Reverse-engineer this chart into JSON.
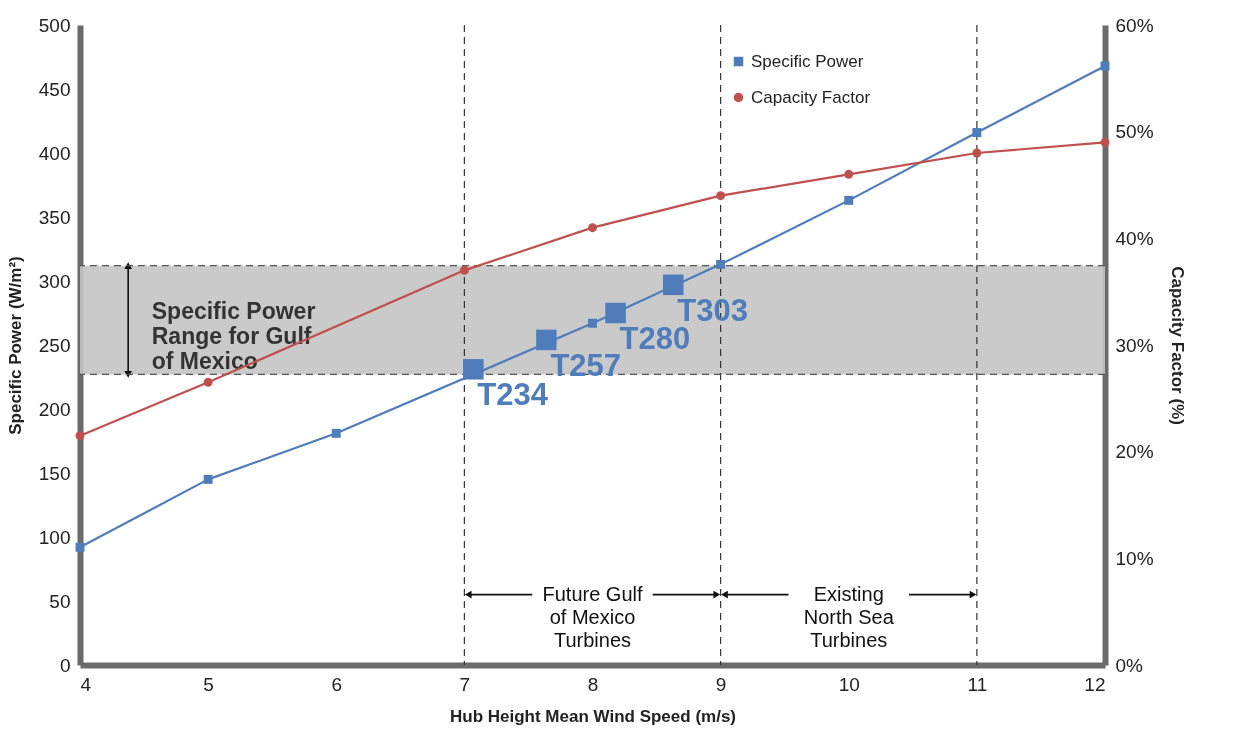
{
  "chart_data": {
    "type": "line",
    "xlabel": "Hub Height Mean Wind Speed (m/s)",
    "ylabel": "Specific Power (W/m²)",
    "y2label": "Capacity Factor (%)",
    "xlim": [
      4,
      12
    ],
    "xticks": [
      4,
      5,
      6,
      7,
      8,
      9,
      10,
      11,
      12
    ],
    "ylim": [
      0,
      500
    ],
    "yticks": [
      0,
      50,
      100,
      150,
      200,
      250,
      300,
      350,
      400,
      450,
      500
    ],
    "y2lim": [
      0,
      60
    ],
    "y2ticks": [
      {
        "value": 0,
        "label": "0%"
      },
      {
        "value": 10,
        "label": "10%"
      },
      {
        "value": 20,
        "label": "20%"
      },
      {
        "value": 30,
        "label": "30%"
      },
      {
        "value": 40,
        "label": "40%"
      },
      {
        "value": 50,
        "label": "50%"
      },
      {
        "value": 60,
        "label": "60%"
      }
    ],
    "legend": "top right",
    "series": [
      {
        "name": "Specific Power",
        "color": "#4f7cba",
        "marker": "square",
        "x": [
          4,
          5,
          6,
          8,
          9,
          10,
          11,
          12
        ],
        "values": [
          92,
          145,
          181,
          267,
          313,
          363,
          416,
          468
        ]
      },
      {
        "name": "Capacity Factor",
        "color": "#c0504d",
        "marker": "circle",
        "axis": "y2",
        "x": [
          4,
          5,
          7,
          8,
          9,
          10,
          11,
          12
        ],
        "values": [
          21.5,
          26.5,
          37,
          41,
          44,
          46,
          48,
          49
        ]
      },
      {
        "type": "scatter",
        "color": "#4f7cba",
        "marker": "square",
        "x": [
          7.07,
          7.64,
          8.18,
          8.63
        ],
        "values": [
          231,
          254,
          275,
          297
        ],
        "value_labels": [
          "T234",
          "T257",
          "T280",
          "T303"
        ]
      }
    ],
    "ref_lines": [
      {
        "axis": "x",
        "value": 7,
        "color": "#333333",
        "line_style": "dashed"
      },
      {
        "axis": "x",
        "value": 9,
        "color": "#333333",
        "line_style": "dashed"
      },
      {
        "axis": "x",
        "value": 11,
        "color": "#333333",
        "line_style": "dashed"
      },
      {
        "axis": "y",
        "value": 227,
        "color": "#555555",
        "line_style": "dashed"
      },
      {
        "axis": "y",
        "value": 312,
        "color": "#555555",
        "line_style": "dashed"
      }
    ],
    "bands": [
      {
        "axis": "y",
        "from": 227,
        "to": 312,
        "label": "Specific Power\nRange for Gulf\nof Mexico",
        "color": "#c4c4c4"
      }
    ],
    "annotations": [
      {
        "text": "Future Gulf\nof Mexico\nTurbines",
        "x": 7,
        "y": 55
      },
      {
        "text": "Existing\nNorth Sea\nTurbines",
        "x": 9,
        "y": 55
      }
    ]
  }
}
